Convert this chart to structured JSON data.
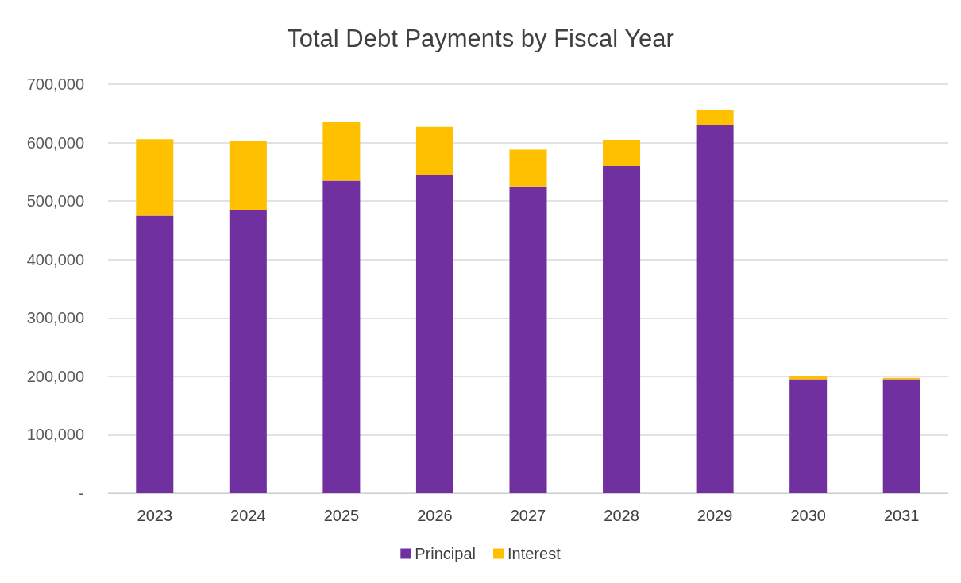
{
  "chart_data": {
    "type": "bar",
    "title": "Total Debt Payments by Fiscal Year",
    "stacked": true,
    "categories": [
      "2023",
      "2024",
      "2025",
      "2026",
      "2027",
      "2028",
      "2029",
      "2030",
      "2031"
    ],
    "series": [
      {
        "name": "Principal",
        "color": "#7030a0",
        "values": [
          475000,
          485000,
          535000,
          545000,
          525000,
          560000,
          630000,
          195000,
          195000
        ]
      },
      {
        "name": "Interest",
        "color": "#ffc000",
        "values": [
          131000,
          118000,
          101000,
          82000,
          63000,
          45000,
          26000,
          5000,
          2500
        ]
      }
    ],
    "ylim": [
      0,
      700000
    ],
    "yticks": [
      {
        "value": 0,
        "label": "-"
      },
      {
        "value": 100000,
        "label": "100,000"
      },
      {
        "value": 200000,
        "label": "200,000"
      },
      {
        "value": 300000,
        "label": "300,000"
      },
      {
        "value": 400000,
        "label": "400,000"
      },
      {
        "value": 500000,
        "label": "500,000"
      },
      {
        "value": 600000,
        "label": "600,000"
      },
      {
        "value": 700000,
        "label": "700,000"
      }
    ],
    "grid": "y",
    "legend": "bottom"
  }
}
